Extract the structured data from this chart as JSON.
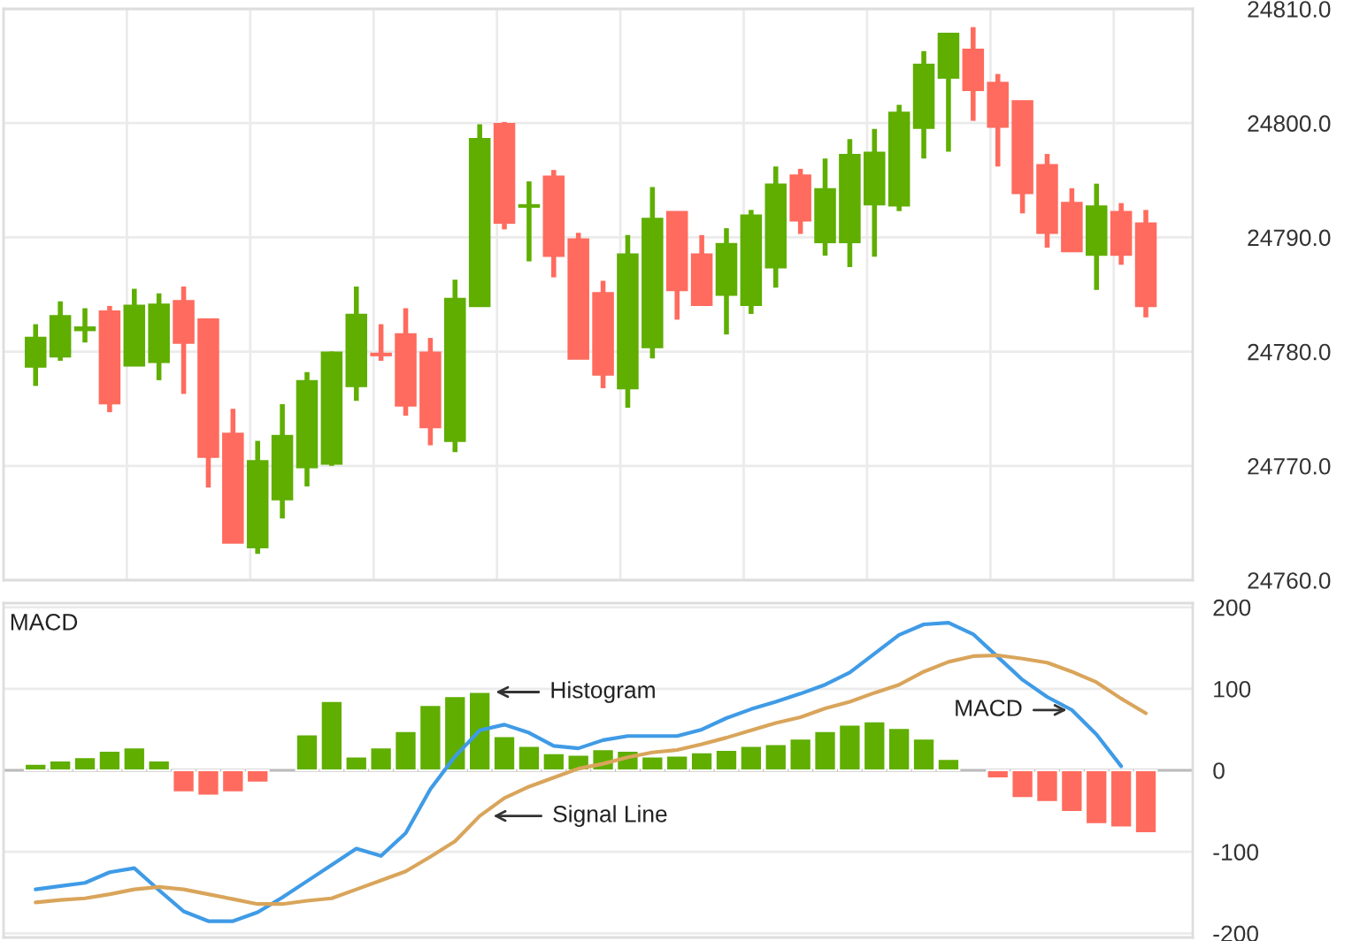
{
  "chart_data": [
    {
      "type": "candlestick",
      "categories": [
        null,
        null,
        null,
        null,
        null,
        null,
        null,
        null,
        null,
        null,
        null,
        null,
        null,
        null,
        null,
        null,
        null,
        null,
        null,
        null,
        null,
        null,
        null,
        null,
        null,
        null,
        null,
        null,
        null,
        null,
        null,
        null,
        null,
        null,
        null,
        null,
        null,
        null,
        null,
        null,
        null,
        null,
        null,
        null,
        null,
        null
      ],
      "ohlc": [
        [
          24778.7,
          24782.4,
          24777.0,
          24781.2
        ],
        [
          24779.6,
          24784.4,
          24779.2,
          24783.1
        ],
        [
          24781.9,
          24783.8,
          24780.8,
          24782.1
        ],
        [
          24783.5,
          24784.0,
          24774.7,
          24775.5
        ],
        [
          24778.8,
          24785.5,
          24778.8,
          24784.0
        ],
        [
          24779.1,
          24785.1,
          24777.5,
          24784.1
        ],
        [
          24784.4,
          24785.7,
          24776.3,
          24780.8
        ],
        [
          24782.8,
          24782.8,
          24768.1,
          24770.8
        ],
        [
          24772.8,
          24775.0,
          24763.3,
          24763.3
        ],
        [
          24762.9,
          24772.2,
          24762.3,
          24770.4
        ],
        [
          24767.1,
          24775.4,
          24765.4,
          24772.6
        ],
        [
          24769.9,
          24778.2,
          24768.2,
          24777.4
        ],
        [
          24770.2,
          24780.0,
          24770.0,
          24779.9
        ],
        [
          24777.0,
          24785.7,
          24775.7,
          24783.2
        ],
        [
          24779.8,
          24782.4,
          24779.2,
          24779.7
        ],
        [
          24781.5,
          24783.8,
          24774.4,
          24775.3
        ],
        [
          24779.9,
          24781.2,
          24771.8,
          24773.4
        ],
        [
          24772.2,
          24786.3,
          24771.2,
          24784.6
        ],
        [
          24784.0,
          24799.9,
          24784.0,
          24798.6
        ],
        [
          24799.9,
          24800.1,
          24790.7,
          24791.3
        ],
        [
          24792.7,
          24794.9,
          24787.9,
          24792.8
        ],
        [
          24795.3,
          24795.9,
          24786.5,
          24788.4
        ],
        [
          24789.8,
          24790.4,
          24779.4,
          24779.4
        ],
        [
          24785.1,
          24786.2,
          24776.8,
          24778.0
        ],
        [
          24776.8,
          24790.2,
          24775.1,
          24788.5
        ],
        [
          24780.4,
          24794.4,
          24779.4,
          24791.6
        ],
        [
          24792.2,
          24792.2,
          24782.8,
          24785.4
        ],
        [
          24788.5,
          24790.2,
          24784.1,
          24784.1
        ],
        [
          24785.0,
          24790.8,
          24781.5,
          24789.4
        ],
        [
          24784.1,
          24792.4,
          24783.3,
          24791.9
        ],
        [
          24787.4,
          24796.2,
          24785.6,
          24794.6
        ],
        [
          24795.4,
          24796.0,
          24790.3,
          24791.5
        ],
        [
          24789.6,
          24796.9,
          24788.4,
          24794.2
        ],
        [
          24789.6,
          24798.6,
          24787.4,
          24797.2
        ],
        [
          24792.9,
          24799.5,
          24788.3,
          24797.4
        ],
        [
          24792.8,
          24801.6,
          24792.3,
          24800.9
        ],
        [
          24799.6,
          24806.3,
          24796.9,
          24805.1
        ],
        [
          24804.0,
          24807.8,
          24797.5,
          24807.8
        ],
        [
          24806.4,
          24808.4,
          24800.2,
          24802.9
        ],
        [
          24803.5,
          24804.3,
          24796.2,
          24799.7
        ],
        [
          24801.9,
          24801.9,
          24792.1,
          24793.9
        ],
        [
          24796.3,
          24797.3,
          24789.1,
          24790.4
        ],
        [
          24793.0,
          24794.3,
          24788.8,
          24788.8
        ],
        [
          24788.5,
          24794.7,
          24785.4,
          24792.7
        ],
        [
          24792.2,
          24793.0,
          24787.6,
          24788.5
        ],
        [
          24791.2,
          24792.4,
          24783.0,
          24784.0
        ]
      ],
      "colors": [
        "#5fae00",
        "#5fae00",
        "#5fae00",
        "#ff6b5e",
        "#5fae00",
        "#5fae00",
        "#ff6b5e",
        "#ff6b5e",
        "#ff6b5e",
        "#5fae00",
        "#5fae00",
        "#5fae00",
        "#5fae00",
        "#5fae00",
        "#ff6b5e",
        "#ff6b5e",
        "#ff6b5e",
        "#5fae00",
        "#5fae00",
        "#ff6b5e",
        "#5fae00",
        "#ff6b5e",
        "#ff6b5e",
        "#ff6b5e",
        "#5fae00",
        "#5fae00",
        "#ff6b5e",
        "#ff6b5e",
        "#5fae00",
        "#5fae00",
        "#5fae00",
        "#ff6b5e",
        "#5fae00",
        "#5fae00",
        "#5fae00",
        "#5fae00",
        "#5fae00",
        "#5fae00",
        "#ff6b5e",
        "#ff6b5e",
        "#ff6b5e",
        "#ff6b5e",
        "#ff6b5e",
        "#5fae00",
        "#ff6b5e",
        "#ff6b5e"
      ],
      "ylim": [
        24760,
        24810
      ],
      "yticks": [
        {
          "value": 24760,
          "label": "24760.0"
        },
        {
          "value": 24770,
          "label": "24770.0"
        },
        {
          "value": 24780,
          "label": "24780.0"
        },
        {
          "value": 24790,
          "label": "24790.0"
        },
        {
          "value": 24800,
          "label": "24800.0"
        },
        {
          "value": 24810,
          "label": "24810.0"
        }
      ],
      "grid": true,
      "tick_labels": "y"
    },
    {
      "type": "bar",
      "title": "MACD",
      "categories": [
        null,
        null,
        null,
        null,
        null,
        null,
        null,
        null,
        null,
        null,
        null,
        null,
        null,
        null,
        null,
        null,
        null,
        null,
        null,
        null,
        null,
        null,
        null,
        null,
        null,
        null,
        null,
        null,
        null,
        null,
        null,
        null,
        null,
        null,
        null,
        null,
        null,
        null,
        null,
        null,
        null,
        null,
        null,
        null,
        null,
        null
      ],
      "series": [
        {
          "type": "bar",
          "name": "Histogram",
          "values": [
            8,
            12,
            16,
            24,
            28,
            12,
            -27,
            -31,
            -27,
            -15,
            null,
            44,
            85,
            17,
            28,
            48,
            80,
            91,
            96,
            42,
            30,
            21,
            19,
            26,
            24,
            17,
            18,
            22,
            25,
            30,
            32,
            39,
            48,
            56,
            60,
            52,
            39,
            14,
            null,
            -10,
            -34,
            -39,
            -51,
            -66,
            -70,
            -77
          ],
          "colors": [
            "#5fae00",
            "#5fae00",
            "#5fae00",
            "#5fae00",
            "#5fae00",
            "#5fae00",
            "#ff6b5e",
            "#ff6b5e",
            "#ff6b5e",
            "#ff6b5e",
            null,
            "#5fae00",
            "#5fae00",
            "#5fae00",
            "#5fae00",
            "#5fae00",
            "#5fae00",
            "#5fae00",
            "#5fae00",
            "#5fae00",
            "#5fae00",
            "#5fae00",
            "#5fae00",
            "#5fae00",
            "#5fae00",
            "#5fae00",
            "#5fae00",
            "#5fae00",
            "#5fae00",
            "#5fae00",
            "#5fae00",
            "#5fae00",
            "#5fae00",
            "#5fae00",
            "#5fae00",
            "#5fae00",
            "#5fae00",
            "#5fae00",
            null,
            "#ff6b5e",
            "#ff6b5e",
            "#ff6b5e",
            "#ff6b5e",
            "#ff6b5e",
            "#ff6b5e",
            "#ff6b5e"
          ]
        },
        {
          "type": "line",
          "name": "MACD",
          "color": "#3f9be6",
          "values": [
            -146,
            -142,
            -138,
            -125,
            -120,
            -147,
            -173,
            -185,
            -185,
            -174,
            -156,
            -136,
            -116,
            -96,
            -105,
            -77,
            -23,
            17,
            49,
            56,
            46,
            30,
            27,
            37,
            42,
            42,
            42,
            50,
            64,
            75,
            84,
            94,
            105,
            120,
            143,
            166,
            179,
            181,
            167,
            139,
            111,
            90,
            74,
            44,
            5,
            null
          ]
        },
        {
          "type": "line",
          "name": "Signal Line",
          "color": "#d9a55b",
          "values": [
            -162,
            -159,
            -157,
            -152,
            -146,
            -143,
            -146,
            -152,
            -158,
            -164,
            -164,
            -160,
            -157,
            -146,
            -135,
            -124,
            -106,
            -87,
            -56,
            -34,
            -20,
            -9,
            2,
            8,
            16,
            22,
            25,
            32,
            40,
            49,
            58,
            65,
            76,
            84,
            95,
            105,
            121,
            133,
            140,
            141,
            137,
            132,
            121,
            108,
            88,
            70
          ]
        }
      ],
      "ylim": [
        -205,
        205
      ],
      "yticks": [
        -200,
        -100,
        0,
        100,
        200
      ],
      "grid": "y",
      "tick_labels": "y"
    }
  ]
}
